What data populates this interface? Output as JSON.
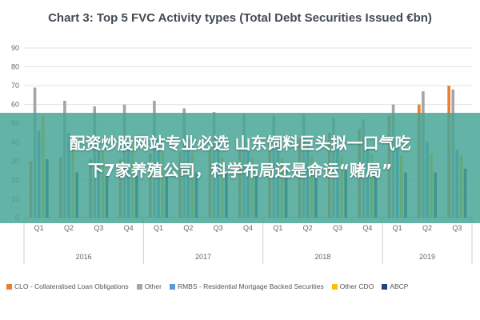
{
  "chart_data": {
    "type": "bar",
    "title": "Chart 3: Top 5 FVC Activity types (Total Debt Securities Issued €bn)",
    "xlabel": "",
    "ylabel": "",
    "ylim": [
      0,
      90
    ],
    "yticks": [
      "0",
      "10",
      "20",
      "30",
      "40",
      "50",
      "60",
      "70",
      "80",
      "90"
    ],
    "grid": true,
    "legend_position": "bottom",
    "categories": [
      "Q1",
      "Q2",
      "Q3",
      "Q4",
      "Q1",
      "Q2",
      "Q3",
      "Q4",
      "Q1",
      "Q2",
      "Q3",
      "Q4",
      "Q1",
      "Q2",
      "Q3"
    ],
    "year_groups": [
      {
        "label": "2016",
        "count": 4
      },
      {
        "label": "2017",
        "count": 4
      },
      {
        "label": "2018",
        "count": 4
      },
      {
        "label": "2019",
        "count": 3
      }
    ],
    "series": [
      {
        "name": "CLO - Collateralised Loan Obligations",
        "color": "#ed7d31",
        "values": [
          30,
          32,
          31,
          31,
          34,
          35,
          36,
          36,
          40,
          42,
          45,
          47,
          54,
          60,
          70
        ]
      },
      {
        "name": "Other",
        "color": "#a5a5a5",
        "values": [
          69,
          62,
          59,
          60,
          62,
          58,
          56,
          55,
          54,
          55,
          53,
          52,
          60,
          67,
          68
        ]
      },
      {
        "name": "RMBS - Residential Mortgage Backed Securities",
        "color": "#5b9bd5",
        "values": [
          46,
          45,
          40,
          40,
          42,
          41,
          40,
          40,
          38,
          38,
          38,
          38,
          38,
          40,
          36
        ]
      },
      {
        "name": "Other CDO",
        "color": "#ffc000",
        "values": [
          54,
          40,
          36,
          37,
          35,
          34,
          32,
          32,
          32,
          33,
          33,
          34,
          33,
          34,
          33
        ]
      },
      {
        "name": "ABCP",
        "color": "#264478",
        "values": [
          31,
          24,
          22,
          22,
          24,
          24,
          24,
          25,
          25,
          25,
          25,
          25,
          24,
          24,
          26
        ]
      }
    ]
  },
  "overlay": {
    "line1": "配资炒股网站专业必选 山东饲料巨头拟一口气吃",
    "line2": "下7家养殖公司，科学布局还是命运“赌局”"
  }
}
